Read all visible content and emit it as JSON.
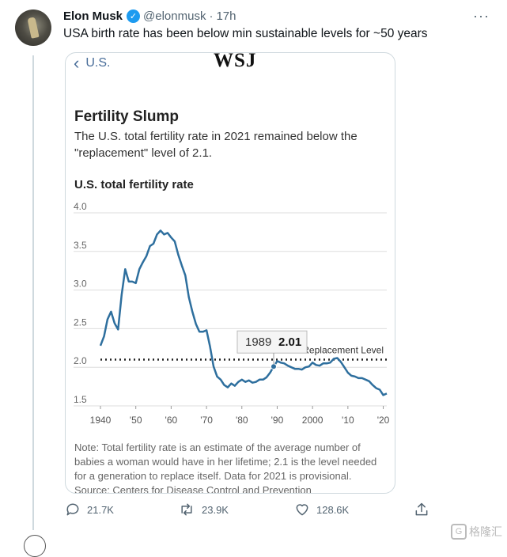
{
  "tweet": {
    "author_name": "Elon Musk",
    "handle": "@elonmusk",
    "separator": "·",
    "time": "17h",
    "verified_mark": "✓",
    "more_label": "···",
    "text": "USA birth rate has been below min sustainable levels for ~50 years"
  },
  "card": {
    "back_label": "U.S.",
    "logo_text": "WSJ",
    "title": "Fertility Slump",
    "subtitle": "The U.S. total fertility rate in 2021 remained below the \"replacement\" level of 2.1.",
    "y_title": "U.S. total fertility rate",
    "note": "Note: Total fertility rate is an estimate of the average number of babies a woman would have in her lifetime; 2.1 is the level needed for a generation to replace itself. Data for 2021 is provisional.",
    "source_partial": "Source: Centers for Disease Control and Prevention"
  },
  "actions": {
    "replies": "21.7K",
    "retweets": "23.9K",
    "likes": "128.6K"
  },
  "watermark": {
    "glyph": "G",
    "text": "格隆汇"
  },
  "chart_data": {
    "type": "line",
    "title": "Fertility Slump",
    "ylabel": "U.S. total fertility rate",
    "ylim": [
      1.5,
      4.0
    ],
    "xlim": [
      1940,
      2021
    ],
    "y_ticks": [
      "4.0",
      "3.5",
      "3.0",
      "2.5",
      "2.0",
      "1.5"
    ],
    "x_ticks": [
      {
        "year": 1940,
        "label": "1940"
      },
      {
        "year": 1950,
        "label": "'50"
      },
      {
        "year": 1960,
        "label": "'60"
      },
      {
        "year": 1970,
        "label": "'70"
      },
      {
        "year": 1980,
        "label": "'80"
      },
      {
        "year": 1990,
        "label": "'90"
      },
      {
        "year": 2000,
        "label": "2000"
      },
      {
        "year": 2010,
        "label": "'10"
      },
      {
        "year": 2020,
        "label": "'20"
      }
    ],
    "grid": true,
    "reference_line": {
      "value": 2.1,
      "label": "Replacement Level"
    },
    "highlight": {
      "x": 1989,
      "y": 2.01,
      "year_label": "1989",
      "value_label": "2.01"
    },
    "colors": {
      "line": "#2e6f9e",
      "reference": "#222222",
      "grid": "#dddddd"
    },
    "series": [
      {
        "x": [
          1940,
          1941,
          1942,
          1943,
          1944,
          1945,
          1946,
          1947,
          1948,
          1949,
          1950,
          1951,
          1952,
          1953,
          1954,
          1955,
          1956,
          1957,
          1958,
          1959,
          1960,
          1961,
          1962,
          1963,
          1964,
          1965,
          1966,
          1967,
          1968,
          1969,
          1970,
          1971,
          1972,
          1973,
          1974,
          1975,
          1976,
          1977,
          1978,
          1979,
          1980,
          1981,
          1982,
          1983,
          1984,
          1985,
          1986,
          1987,
          1988,
          1989,
          1990,
          1991,
          1992,
          1993,
          1994,
          1995,
          1996,
          1997,
          1998,
          1999,
          2000,
          2001,
          2002,
          2003,
          2004,
          2005,
          2006,
          2007,
          2008,
          2009,
          2010,
          2011,
          2012,
          2013,
          2014,
          2015,
          2016,
          2017,
          2018,
          2019,
          2020,
          2021
        ],
        "values": [
          2.28,
          2.4,
          2.62,
          2.72,
          2.57,
          2.49,
          2.94,
          3.27,
          3.11,
          3.11,
          3.09,
          3.27,
          3.36,
          3.44,
          3.57,
          3.6,
          3.72,
          3.77,
          3.72,
          3.74,
          3.68,
          3.63,
          3.46,
          3.32,
          3.19,
          2.91,
          2.72,
          2.56,
          2.46,
          2.46,
          2.48,
          2.27,
          2.01,
          1.88,
          1.84,
          1.77,
          1.74,
          1.79,
          1.76,
          1.81,
          1.84,
          1.81,
          1.83,
          1.8,
          1.81,
          1.84,
          1.84,
          1.87,
          1.93,
          2.01,
          2.08,
          2.06,
          2.05,
          2.02,
          2.0,
          1.98,
          1.98,
          1.97,
          2.0,
          2.01,
          2.06,
          2.03,
          2.02,
          2.05,
          2.05,
          2.06,
          2.11,
          2.12,
          2.07,
          2.0,
          1.93,
          1.89,
          1.88,
          1.86,
          1.86,
          1.84,
          1.82,
          1.77,
          1.73,
          1.71,
          1.64,
          1.66
        ]
      }
    ]
  }
}
